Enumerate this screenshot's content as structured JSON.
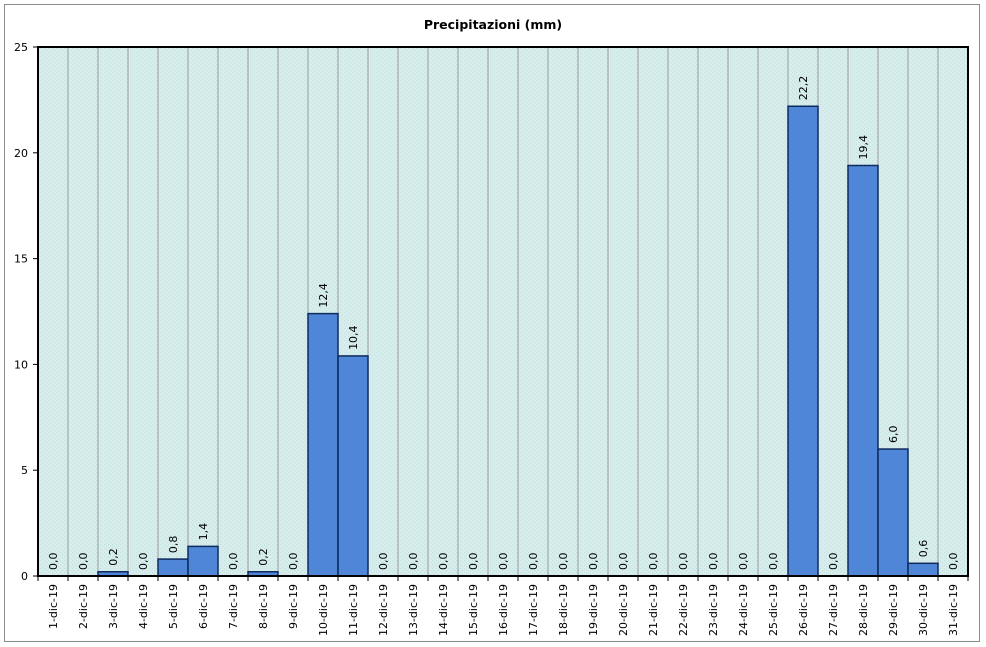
{
  "chart_data": {
    "type": "bar",
    "title": "Precipitazioni (mm)",
    "xlabel": "",
    "ylabel": "",
    "ylim": [
      0,
      25
    ],
    "yticks": [
      "0",
      "5",
      "10",
      "15",
      "20",
      "25"
    ],
    "grid": true,
    "categories": [
      "1-dic-19",
      "2-dic-19",
      "3-dic-19",
      "4-dic-19",
      "5-dic-19",
      "6-dic-19",
      "7-dic-19",
      "8-dic-19",
      "9-dic-19",
      "10-dic-19",
      "11-dic-19",
      "12-dic-19",
      "13-dic-19",
      "14-dic-19",
      "15-dic-19",
      "16-dic-19",
      "17-dic-19",
      "18-dic-19",
      "19-dic-19",
      "20-dic-19",
      "21-dic-19",
      "22-dic-19",
      "23-dic-19",
      "24-dic-19",
      "25-dic-19",
      "26-dic-19",
      "27-dic-19",
      "28-dic-19",
      "29-dic-19",
      "30-dic-19",
      "31-dic-19"
    ],
    "values": [
      0.0,
      0.0,
      0.2,
      0.0,
      0.8,
      1.4,
      0.0,
      0.2,
      0.0,
      12.4,
      10.4,
      0.0,
      0.0,
      0.0,
      0.0,
      0.0,
      0.0,
      0.0,
      0.0,
      0.0,
      0.0,
      0.0,
      0.0,
      0.0,
      0.0,
      22.2,
      0.0,
      19.4,
      6.0,
      0.6,
      0.0
    ],
    "data_labels": [
      "0,0",
      "0,0",
      "0,2",
      "0,0",
      "0,8",
      "1,4",
      "0,0",
      "0,2",
      "0,0",
      "12,4",
      "10,4",
      "0,0",
      "0,0",
      "0,0",
      "0,0",
      "0,0",
      "0,0",
      "0,0",
      "0,0",
      "0,0",
      "0,0",
      "0,0",
      "0,0",
      "0,0",
      "0,0",
      "22,2",
      "0,0",
      "19,4",
      "6,0",
      "0,6",
      "0,0"
    ],
    "colors": {
      "bar_fill": "#4f86d8",
      "bar_stroke": "#0f2a5c",
      "plot_background": "#d8ecec",
      "gridline": "#9a9a9a",
      "axis": "#000000"
    }
  }
}
